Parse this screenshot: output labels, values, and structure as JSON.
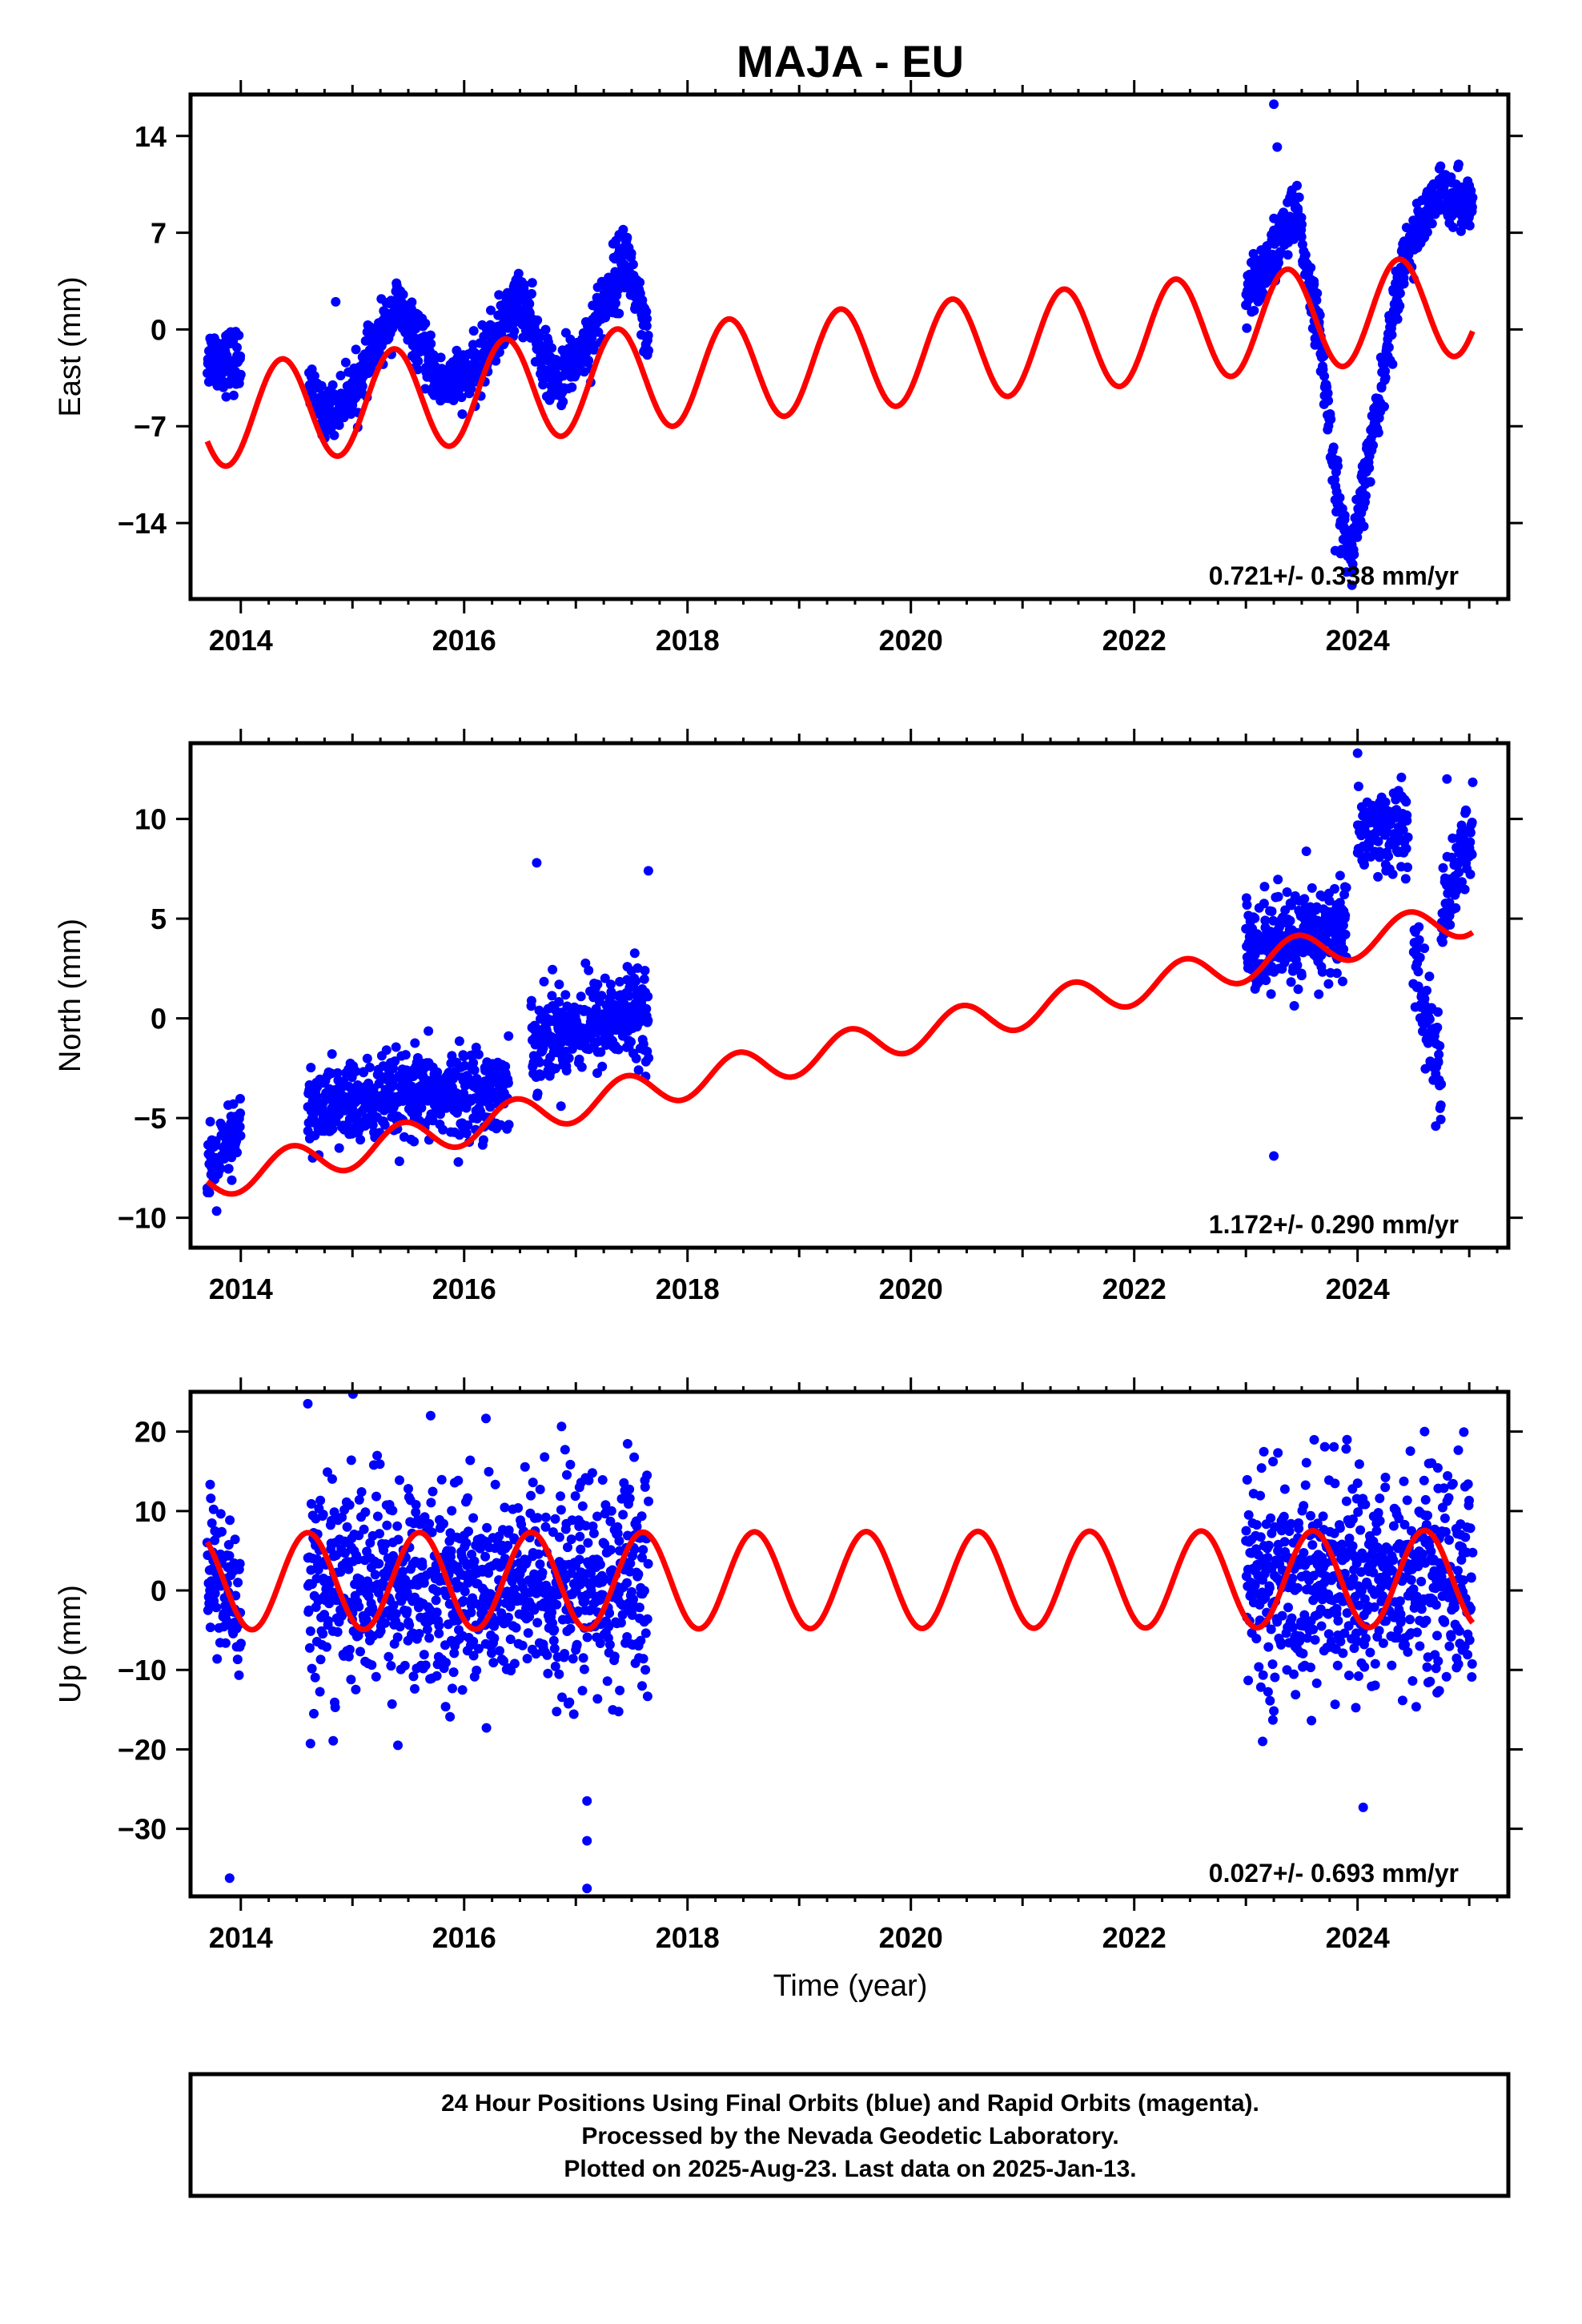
{
  "figure": {
    "title": "MAJA - EU",
    "xlabel": "Time (year)",
    "note_lines": [
      "24 Hour Positions Using Final Orbits (blue) and Rapid Orbits (magenta).",
      "Processed by the Nevada Geodetic Laboratory.",
      "Plotted on 2025-Aug-23. Last data on 2025-Jan-13."
    ],
    "colors": {
      "final_orbits": "#0000ff",
      "model": "#ff0000",
      "frame": "#000000"
    }
  },
  "chart_data": [
    {
      "type": "scatter",
      "id": "east",
      "ylabel": "East (mm)",
      "rate_text": "0.721+/- 0.338 mm/yr",
      "xlim": [
        2013.55,
        2025.35
      ],
      "ylim": [
        -19.5,
        17
      ],
      "x_ticks": [
        2014,
        2016,
        2018,
        2020,
        2022,
        2024
      ],
      "y_ticks": [
        -14,
        -7,
        0,
        7,
        14
      ],
      "model": {
        "offset": -2.2,
        "rate": 0.721,
        "seasonal_amplitude": 3.7,
        "peak_year_fraction": 0.37
      },
      "segments": [
        {
          "x": [
            2013.7,
            2014.0
          ],
          "y": [
            -2.0,
            -2.3
          ],
          "spread": 1.4
        },
        {
          "x": [
            2014.6,
            2014.75
          ],
          "y": [
            -4.0,
            -6.2
          ],
          "spread": 1.0
        },
        {
          "x": [
            2014.75,
            2015.0
          ],
          "y": [
            -6.2,
            -4.5
          ],
          "spread": 1.1
        },
        {
          "x": [
            2015.0,
            2015.4
          ],
          "y": [
            -4.5,
            1.8
          ],
          "spread": 1.2
        },
        {
          "x": [
            2015.4,
            2015.8
          ],
          "y": [
            1.8,
            -4.0
          ],
          "spread": 1.2
        },
        {
          "x": [
            2015.8,
            2016.1
          ],
          "y": [
            -4.0,
            -3.0
          ],
          "spread": 1.2
        },
        {
          "x": [
            2016.1,
            2016.5
          ],
          "y": [
            -3.0,
            2.5
          ],
          "spread": 1.3
        },
        {
          "x": [
            2016.5,
            2016.8
          ],
          "y": [
            2.5,
            -4.0
          ],
          "spread": 1.3
        },
        {
          "x": [
            2016.8,
            2017.1
          ],
          "y": [
            -4.0,
            -1.0
          ],
          "spread": 1.3
        },
        {
          "x": [
            2017.1,
            2017.45
          ],
          "y": [
            -1.0,
            5.5
          ],
          "spread": 1.5
        },
        {
          "x": [
            2017.45,
            2017.65
          ],
          "y": [
            5.5,
            -1.5
          ],
          "spread": 1.5
        },
        {
          "x": [
            2023.0,
            2023.45
          ],
          "y": [
            2.0,
            8.5
          ],
          "spread": 1.4
        },
        {
          "x": [
            2023.45,
            2023.65
          ],
          "y": [
            8.5,
            0.0
          ],
          "spread": 1.2
        },
        {
          "x": [
            2023.65,
            2023.85
          ],
          "y": [
            0.0,
            -14.0
          ],
          "spread": 1.3
        },
        {
          "x": [
            2023.85,
            2023.95
          ],
          "y": [
            -14.0,
            -16.5
          ],
          "spread": 1.2
        },
        {
          "x": [
            2023.95,
            2024.15
          ],
          "y": [
            -16.5,
            -7.0
          ],
          "spread": 1.3
        },
        {
          "x": [
            2024.15,
            2024.4
          ],
          "y": [
            -7.0,
            5.0
          ],
          "spread": 1.3
        },
        {
          "x": [
            2024.4,
            2024.75
          ],
          "y": [
            5.0,
            10.0
          ],
          "spread": 1.2
        },
        {
          "x": [
            2024.75,
            2025.03
          ],
          "y": [
            10.0,
            9.0
          ],
          "spread": 1.2
        }
      ],
      "outliers": [
        [
          2023.25,
          16.3
        ],
        [
          2023.28,
          13.2
        ],
        [
          2014.85,
          2.0
        ],
        [
          2023.95,
          -18.5
        ],
        [
          2023.8,
          -16.0
        ]
      ]
    },
    {
      "type": "scatter",
      "id": "north",
      "ylabel": "North (mm)",
      "rate_text": "1.172+/- 0.290 mm/yr",
      "xlim": [
        2013.55,
        2025.35
      ],
      "ylim": [
        -11.5,
        13.8
      ],
      "x_ticks": [
        2014,
        2016,
        2018,
        2020,
        2022,
        2024
      ],
      "y_ticks": [
        -10,
        -5,
        0,
        5,
        10
      ],
      "model": {
        "offset": -1.5,
        "rate": 1.172,
        "seasonal_amplitude": 0.9,
        "peak_year_fraction": 0.45
      },
      "segments": [
        {
          "x": [
            2013.7,
            2014.0
          ],
          "y": [
            -8.0,
            -5.5
          ],
          "spread": 1.2
        },
        {
          "x": [
            2014.6,
            2016.4
          ],
          "y": [
            -4.5,
            -3.5
          ],
          "spread": 1.3
        },
        {
          "x": [
            2016.6,
            2017.65
          ],
          "y": [
            -1.0,
            0.5
          ],
          "spread": 1.4
        },
        {
          "x": [
            2023.0,
            2023.9
          ],
          "y": [
            3.5,
            4.5
          ],
          "spread": 1.5
        },
        {
          "x": [
            2024.0,
            2024.45
          ],
          "y": [
            9.5,
            9.5
          ],
          "spread": 1.3
        },
        {
          "x": [
            2024.5,
            2024.75
          ],
          "y": [
            3.0,
            -3.0
          ],
          "spread": 1.5
        },
        {
          "x": [
            2024.75,
            2025.03
          ],
          "y": [
            5.0,
            9.5
          ],
          "spread": 1.3
        }
      ],
      "outliers": [
        [
          2016.65,
          7.8
        ],
        [
          2017.65,
          7.4
        ],
        [
          2023.25,
          -6.9
        ],
        [
          2024.0,
          13.3
        ],
        [
          2024.8,
          12.0
        ],
        [
          2024.7,
          -5.4
        ]
      ]
    },
    {
      "type": "scatter",
      "id": "up",
      "ylabel": "Up (mm)",
      "rate_text": "0.027+/- 0.693 mm/yr",
      "xlim": [
        2013.55,
        2025.35
      ],
      "ylim": [
        -38.5,
        25
      ],
      "x_ticks": [
        2014,
        2016,
        2018,
        2020,
        2022,
        2024
      ],
      "y_ticks": [
        -30,
        -20,
        -10,
        0,
        10,
        20
      ],
      "model": {
        "offset": 1.3,
        "rate": 0.027,
        "seasonal_amplitude": 6.1,
        "peak_year_fraction": 0.6
      },
      "segments": [
        {
          "x": [
            2013.7,
            2014.0
          ],
          "y": [
            3.0,
            -2.0
          ],
          "spread": 6.5
        },
        {
          "x": [
            2014.6,
            2016.4
          ],
          "y": [
            0.5,
            0.5
          ],
          "spread": 8.0
        },
        {
          "x": [
            2016.4,
            2017.65
          ],
          "y": [
            0.0,
            1.0
          ],
          "spread": 8.5
        },
        {
          "x": [
            2023.0,
            2025.03
          ],
          "y": [
            1.0,
            2.0
          ],
          "spread": 8.0
        }
      ],
      "outliers": [
        [
          2013.9,
          -36.2
        ],
        [
          2014.6,
          23.5
        ],
        [
          2015.7,
          22.0
        ],
        [
          2017.1,
          -37.5
        ],
        [
          2017.1,
          -31.5
        ],
        [
          2017.1,
          -26.5
        ],
        [
          2024.05,
          -27.3
        ],
        [
          2024.6,
          20.0
        ],
        [
          2023.15,
          -19.0
        ]
      ]
    }
  ]
}
